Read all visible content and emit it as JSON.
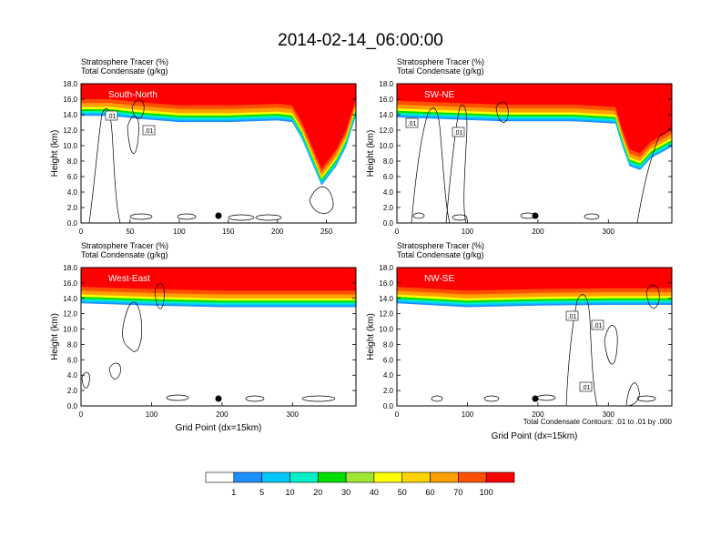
{
  "title": "2014-02-14_06:00:00",
  "chart_data": [
    {
      "type": "heatmap",
      "panel": "South-North",
      "label": "South-North",
      "subtitle_lines": [
        "Stratosphere Tracer   (%)",
        "Total Condensate   (g/kg)"
      ],
      "ylabel": "Height (km)",
      "xlabel": "",
      "xlim": [
        0,
        280
      ],
      "ylim": [
        0,
        18
      ],
      "xticks": [
        0,
        50,
        100,
        150,
        200,
        250
      ],
      "yticks": [
        "0.0",
        "2.0",
        "4.0",
        "6.0",
        "8.0",
        "10.0",
        "12.0",
        "14.0",
        "16.0",
        "18.0"
      ],
      "contour_labels": [
        ".01",
        ".01"
      ],
      "layer_top": [
        [
          0,
          16.0
        ],
        [
          30,
          16.0
        ],
        [
          60,
          15.6
        ],
        [
          100,
          15.2
        ],
        [
          150,
          15.2
        ],
        [
          200,
          15.4
        ],
        [
          215,
          15.2
        ],
        [
          225,
          13.0
        ],
        [
          235,
          10.0
        ],
        [
          245,
          7.0
        ],
        [
          260,
          9.5
        ],
        [
          270,
          12.0
        ],
        [
          280,
          16.0
        ]
      ]
    },
    {
      "type": "heatmap",
      "panel": "SW-NE",
      "label": "SW-NE",
      "subtitle_lines": [
        "Stratosphere Tracer   (%)",
        "Total Condensate   (g/kg)"
      ],
      "ylabel": "Height (km)",
      "xlabel": "",
      "xlim": [
        0,
        390
      ],
      "ylim": [
        0,
        18
      ],
      "xticks": [
        0,
        100,
        200,
        300
      ],
      "yticks": [
        "0.0",
        "2.0",
        "4.0",
        "6.0",
        "8.0",
        "10.0",
        "12.0",
        "14.0",
        "16.0",
        "18.0"
      ],
      "contour_labels": [
        ".01",
        ".01"
      ],
      "layer_top": [
        [
          0,
          15.8
        ],
        [
          60,
          15.6
        ],
        [
          150,
          15.3
        ],
        [
          250,
          15.3
        ],
        [
          310,
          15.0
        ],
        [
          320,
          12.0
        ],
        [
          330,
          9.5
        ],
        [
          345,
          9.0
        ],
        [
          360,
          10.5
        ],
        [
          380,
          11.5
        ],
        [
          390,
          12.0
        ]
      ]
    },
    {
      "type": "heatmap",
      "panel": "West-East",
      "label": "West-East",
      "subtitle_lines": [
        "Stratosphere Tracer   (%)",
        "Total Condensate   (g/kg)"
      ],
      "ylabel": "Height (km)",
      "xlabel": "Grid Point (dx=15km)",
      "xlim": [
        0,
        390
      ],
      "ylim": [
        0,
        18
      ],
      "xticks": [
        0,
        100,
        200,
        300
      ],
      "yticks": [
        "0.0",
        "2.0",
        "4.0",
        "6.0",
        "8.0",
        "10.0",
        "12.0",
        "14.0",
        "16.0",
        "18.0"
      ],
      "contour_labels": [],
      "layer_top": [
        [
          0,
          15.5
        ],
        [
          100,
          15.2
        ],
        [
          200,
          15.0
        ],
        [
          300,
          15.0
        ],
        [
          390,
          15.0
        ]
      ]
    },
    {
      "type": "heatmap",
      "panel": "NW-SE",
      "label": "NW-SE",
      "subtitle_lines": [
        "Stratosphere Tracer   (%)",
        "Total Condensate   (g/kg)"
      ],
      "ylabel": "Height (km)",
      "xlabel": "Grid Point (dx=15km)",
      "xlim": [
        0,
        390
      ],
      "ylim": [
        0,
        18
      ],
      "xticks": [
        0,
        100,
        200,
        300
      ],
      "yticks": [
        "0.0",
        "2.0",
        "4.0",
        "6.0",
        "8.0",
        "10.0",
        "12.0",
        "14.0",
        "16.0",
        "18.0"
      ],
      "contour_labels": [
        ".01",
        ".01",
        ".01"
      ],
      "layer_top": [
        [
          0,
          15.5
        ],
        [
          100,
          15.0
        ],
        [
          200,
          15.2
        ],
        [
          300,
          15.3
        ],
        [
          390,
          15.3
        ]
      ],
      "footnote": "Total Condensate Contours: .01 to .01 by .000"
    }
  ],
  "colorbar": {
    "levels": [
      "1",
      "5",
      "10",
      "20",
      "30",
      "40",
      "50",
      "60",
      "70",
      "100"
    ],
    "colors": [
      "#ffffff",
      "#1e8fff",
      "#00c8ff",
      "#00f0c8",
      "#00e000",
      "#a0e632",
      "#ffff00",
      "#ffd200",
      "#ffa000",
      "#ff5000",
      "#ff0000"
    ]
  }
}
